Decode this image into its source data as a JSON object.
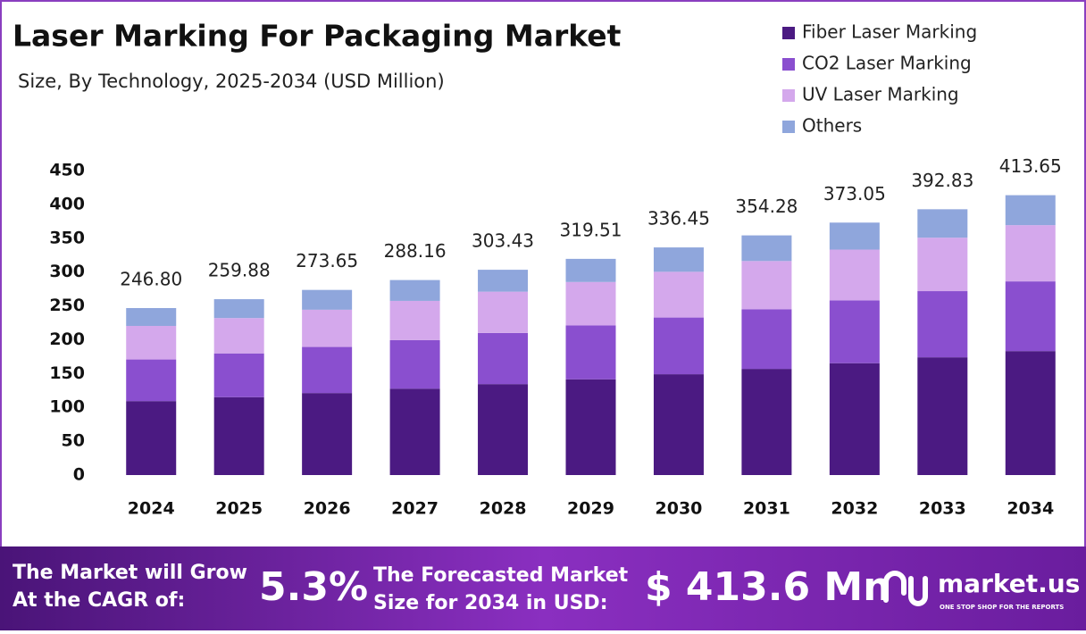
{
  "chart_data": {
    "type": "stacked_bar",
    "title": "Laser Marking For Packaging Market",
    "subtitle": "Size, By Technology, 2025-2034 (USD Million)",
    "categories": [
      "2024",
      "2025",
      "2026",
      "2027",
      "2028",
      "2029",
      "2030",
      "2031",
      "2032",
      "2033",
      "2034"
    ],
    "series": [
      {
        "name": "Fiber Laser Marking",
        "color": "#4b1a82",
        "values": [
          109.3,
          115.1,
          121.2,
          127.7,
          134.4,
          141.5,
          149.0,
          156.9,
          165.3,
          174.0,
          183.2
        ]
      },
      {
        "name": "CO2 Laser Marking",
        "color": "#8a4fcf",
        "values": [
          61.5,
          64.7,
          68.1,
          71.8,
          75.6,
          79.6,
          83.8,
          88.2,
          92.9,
          97.8,
          103.0
        ]
      },
      {
        "name": "UV Laser Marking",
        "color": "#d4a8ec",
        "values": [
          49.6,
          52.2,
          55.0,
          57.9,
          61.0,
          64.2,
          67.6,
          71.2,
          75.0,
          79.0,
          83.1
        ]
      },
      {
        "name": "Others",
        "color": "#8fa6dc",
        "values": [
          26.4,
          27.9,
          29.3,
          30.8,
          32.4,
          34.2,
          36.0,
          37.9,
          39.9,
          42.0,
          44.3
        ]
      }
    ],
    "totals": {
      "values": [
        246.8,
        259.88,
        273.65,
        288.16,
        303.43,
        319.51,
        336.45,
        354.28,
        373.05,
        392.83,
        413.65
      ],
      "value_labels": [
        "246.80",
        "259.88",
        "273.65",
        "288.16",
        "303.43",
        "319.51",
        "336.45",
        "354.28",
        "373.05",
        "392.83",
        "413.65"
      ]
    },
    "ylim": [
      0,
      450
    ],
    "yticks": [
      0,
      50,
      100,
      150,
      200,
      250,
      300,
      350,
      400,
      450
    ],
    "grid": false,
    "legend": "top-right"
  },
  "footer": {
    "cagr_text": [
      "The Market will Grow",
      "At the CAGR of:"
    ],
    "cagr": "5.3%",
    "forecast_text": [
      "The Forecasted Market",
      "Size for 2034 in USD:"
    ],
    "forecast": "$ 413.6 Mn",
    "brand": "market.us",
    "tagline": "ONE STOP SHOP FOR THE REPORTS"
  }
}
